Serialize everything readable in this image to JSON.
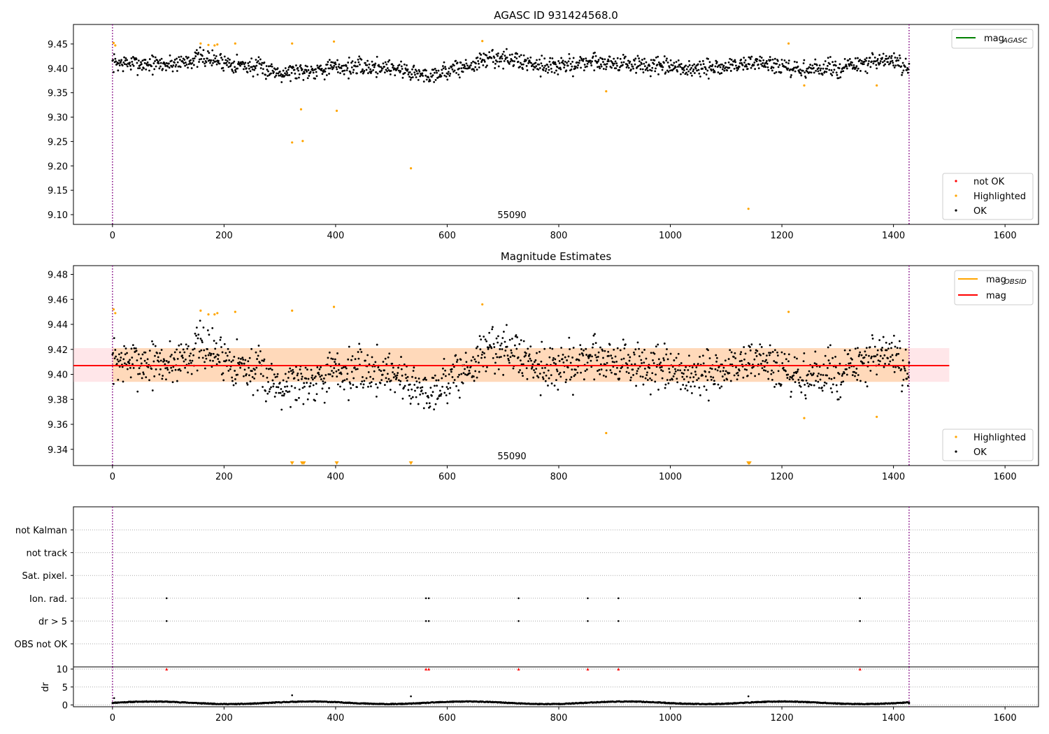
{
  "chart_data": [
    {
      "type": "scatter",
      "title": "AGASC ID 931424568.0",
      "xlim": [
        -70,
        1660
      ],
      "ylim": [
        9.08,
        9.49
      ],
      "x_ticks": [
        0,
        200,
        400,
        600,
        800,
        1000,
        1200,
        1400,
        1600
      ],
      "y_ticks": [
        "9.10",
        "9.15",
        "9.20",
        "9.25",
        "9.30",
        "9.35",
        "9.40",
        "9.45"
      ],
      "obsid_annotation": {
        "text": "55090",
        "x": 712
      },
      "vlines": [
        0,
        1428
      ],
      "legend_top": [
        {
          "label": "mag",
          "sub": "AGASC",
          "color": "#008000",
          "kind": "line"
        }
      ],
      "legend_bottom": [
        {
          "label": "not OK",
          "color": "#ff0000",
          "kind": "point"
        },
        {
          "label": "Highlighted",
          "color": "#ffa500",
          "kind": "point"
        },
        {
          "label": "OK",
          "color": "#000000",
          "kind": "point"
        }
      ],
      "ok_series": {
        "count": 1428,
        "x_range": [
          0,
          1428
        ],
        "jitter": 0.011,
        "seed": 7,
        "trend_x": [
          0,
          100,
          160,
          300,
          340,
          400,
          500,
          560,
          640,
          680,
          800,
          860,
          1000,
          1060,
          1160,
          1220,
          1300,
          1400,
          1428
        ],
        "trend_y": [
          9.411,
          9.408,
          9.422,
          9.393,
          9.395,
          9.402,
          9.403,
          9.385,
          9.405,
          9.423,
          9.403,
          9.415,
          9.401,
          9.398,
          9.413,
          9.396,
          9.401,
          9.417,
          9.392
        ]
      },
      "highlighted_points": [
        {
          "x": 2,
          "y": 9.452
        },
        {
          "x": 5,
          "y": 9.447
        },
        {
          "x": 158,
          "y": 9.451
        },
        {
          "x": 172,
          "y": 9.448
        },
        {
          "x": 183,
          "y": 9.447
        },
        {
          "x": 188,
          "y": 9.449
        },
        {
          "x": 220,
          "y": 9.451
        },
        {
          "x": 322,
          "y": 9.451
        },
        {
          "x": 322,
          "y": 9.248
        },
        {
          "x": 338,
          "y": 9.316
        },
        {
          "x": 341,
          "y": 9.251
        },
        {
          "x": 397,
          "y": 9.455
        },
        {
          "x": 402,
          "y": 9.313
        },
        {
          "x": 535,
          "y": 9.195
        },
        {
          "x": 663,
          "y": 9.456
        },
        {
          "x": 885,
          "y": 9.353
        },
        {
          "x": 1140,
          "y": 9.112
        },
        {
          "x": 1212,
          "y": 9.451
        },
        {
          "x": 1240,
          "y": 9.365
        },
        {
          "x": 1370,
          "y": 9.365
        }
      ]
    },
    {
      "type": "scatter",
      "title": "Magnitude Estimates",
      "xlim": [
        -70,
        1660
      ],
      "ylim": [
        9.327,
        9.487
      ],
      "x_ticks": [
        0,
        200,
        400,
        600,
        800,
        1000,
        1200,
        1400,
        1600
      ],
      "y_ticks": [
        "9.34",
        "9.36",
        "9.38",
        "9.40",
        "9.42",
        "9.44",
        "9.46",
        "9.48"
      ],
      "obsid_annotation": {
        "text": "55090",
        "x": 712
      },
      "vlines": [
        0,
        1428
      ],
      "mag_line": {
        "y": 9.407,
        "x_range": [
          -70,
          1500
        ],
        "color": "#ff0000"
      },
      "mag_band": {
        "y_range": [
          9.394,
          9.421
        ],
        "x_range": [
          -70,
          1500
        ],
        "color": "#ffb6c1"
      },
      "obsid_band": {
        "y_range": [
          9.394,
          9.421
        ],
        "x_range": [
          0,
          1428
        ],
        "color": "#ffa500"
      },
      "legend_top": [
        {
          "label": "mag",
          "sub": "OBSID",
          "color": "#ffa500",
          "kind": "line"
        },
        {
          "label": "mag",
          "sub": "",
          "color": "#ff0000",
          "kind": "line"
        }
      ],
      "legend_bottom": [
        {
          "label": "Highlighted",
          "color": "#ffa500",
          "kind": "point"
        },
        {
          "label": "OK",
          "color": "#000000",
          "kind": "point"
        }
      ],
      "offscale_markers": [
        322,
        340,
        343,
        402,
        535,
        1140,
        1142
      ],
      "highlighted_points": [
        {
          "x": 2,
          "y": 9.452
        },
        {
          "x": 5,
          "y": 9.449
        },
        {
          "x": 158,
          "y": 9.451
        },
        {
          "x": 172,
          "y": 9.448
        },
        {
          "x": 183,
          "y": 9.448
        },
        {
          "x": 188,
          "y": 9.449
        },
        {
          "x": 220,
          "y": 9.45
        },
        {
          "x": 322,
          "y": 9.451
        },
        {
          "x": 397,
          "y": 9.454
        },
        {
          "x": 663,
          "y": 9.456
        },
        {
          "x": 885,
          "y": 9.353
        },
        {
          "x": 1212,
          "y": 9.45
        },
        {
          "x": 1240,
          "y": 9.365
        },
        {
          "x": 1370,
          "y": 9.366
        }
      ]
    },
    {
      "type": "scatter",
      "title": "",
      "xlim": [
        -70,
        1660
      ],
      "vlines": [
        0,
        1428
      ],
      "flag_rows": [
        "not Kalman",
        "not track",
        "Sat. pixel.",
        "Ion. rad.",
        "dr > 5",
        "OBS not OK"
      ],
      "flag_points": {
        "Ion. rad.": [
          97,
          562,
          567,
          728,
          852,
          907,
          1340
        ],
        "dr > 5": [
          97,
          562,
          567,
          728,
          852,
          907,
          1340
        ]
      }
    },
    {
      "type": "scatter",
      "title": "",
      "ylabel": "dr",
      "xlim": [
        -70,
        1660
      ],
      "ylim": [
        -0.5,
        10.6
      ],
      "x_ticks": [
        0,
        200,
        400,
        600,
        800,
        1000,
        1200,
        1400,
        1600
      ],
      "y_ticks": [
        "0",
        "5",
        "10"
      ],
      "vlines": [
        0,
        1428
      ],
      "dr_series": {
        "count": 1428,
        "x_range": [
          0,
          1428
        ],
        "base": 0.6,
        "amp": 0.35,
        "jitter": 0.2,
        "seed": 11
      },
      "dr_outliers": [
        {
          "x": 3,
          "y": 1.9
        },
        {
          "x": 322,
          "y": 2.7
        },
        {
          "x": 535,
          "y": 2.4
        },
        {
          "x": 1140,
          "y": 2.4
        },
        {
          "x": 1428,
          "y": 0.4
        }
      ],
      "dr_clipped": [
        97,
        562,
        567,
        728,
        852,
        907,
        1340
      ]
    }
  ]
}
